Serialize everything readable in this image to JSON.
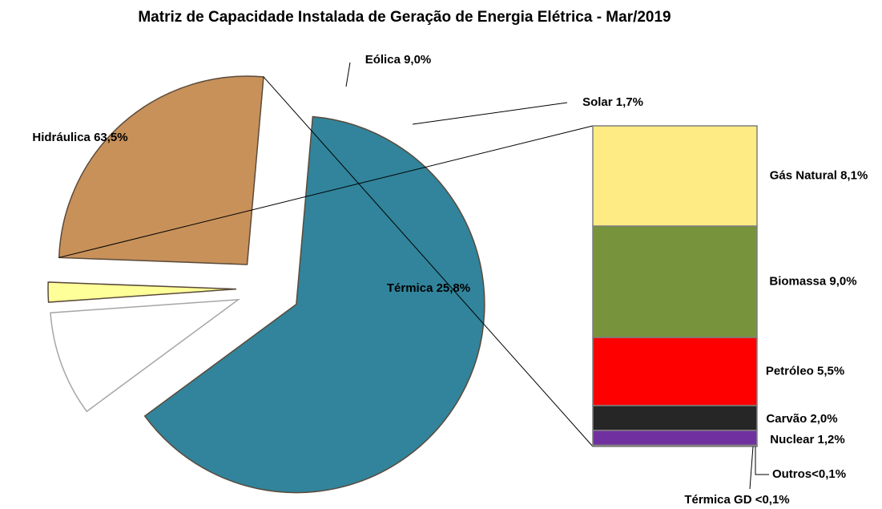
{
  "chart_data": {
    "type": "bar-of-pie",
    "title": "Matriz de Capacidade Instalada de Geração de Energia Elétrica - Mar/2019",
    "values": [
      63.5,
      9.0,
      1.7,
      25.8
    ],
    "value_labels": [
      "Hidráulica 63,5%",
      "Eólica 9,0%",
      "Solar 1,7%",
      "Térmica 25,8%"
    ],
    "colors": [
      "#31849b",
      "#ffffff",
      "#ffff99",
      "#c8915a"
    ],
    "breakdown": {
      "values": [
        8.1,
        9.0,
        5.5,
        2.0,
        1.2,
        0.05,
        0.05
      ],
      "value_labels": [
        "Gás Natural 8,1%",
        "Biomassa 9,0%",
        "Petróleo 5,5%",
        "Carvão 2,0%",
        "Nuclear 1,2%",
        "Outros<0,1%",
        "Térmica GD <0,1%"
      ],
      "colors": [
        "#ffeb84",
        "#77933c",
        "#ff0000",
        "#262626",
        "#7030a0",
        "#7f7f7f",
        "#4f81bd"
      ]
    }
  }
}
